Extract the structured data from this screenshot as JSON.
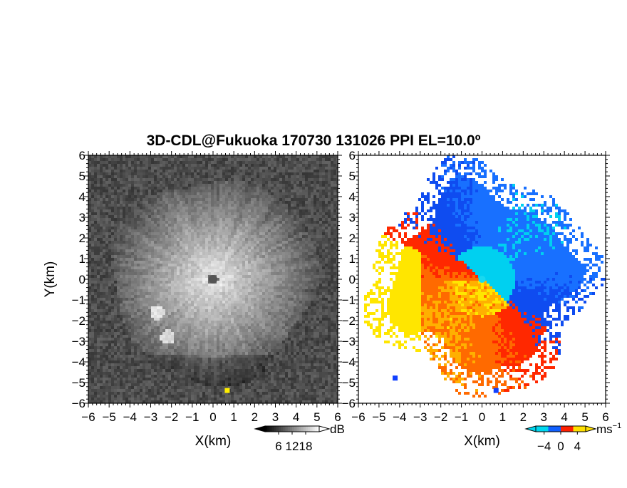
{
  "figure": {
    "title": "3D-CDL@Fukuoka 170730 131026 PPI EL=10.0º"
  },
  "chart_data": [
    {
      "type": "heatmap",
      "panel": "reflectivity",
      "xlabel": "X(km)",
      "ylabel": "Y(km)",
      "xlim": [
        -6,
        6
      ],
      "ylim": [
        -6,
        6
      ],
      "xticks": [
        "−6",
        "−5",
        "−4",
        "−3",
        "−2",
        "−1",
        "0",
        "1",
        "2",
        "3",
        "4",
        "5",
        "6"
      ],
      "yticks": [
        "6",
        "5",
        "4",
        "3",
        "2",
        "1",
        "0",
        "−1",
        "−2",
        "−3",
        "−4",
        "−5",
        "−6"
      ],
      "colorbar": {
        "unit": "dB",
        "ticks": [
          "6",
          "12",
          "18"
        ],
        "tick_values": [
          6,
          12,
          18
        ],
        "range": [
          0,
          24
        ],
        "colormap": "grayscale",
        "colors": [
          "#000000",
          "#ffffff"
        ]
      },
      "features": [
        {
          "label": "high-echo disk",
          "center": [
            0,
            0
          ],
          "radius_km": 4.0
        },
        {
          "label": "outer echo ring",
          "center": [
            0,
            0
          ],
          "radius_km": 5.0
        },
        {
          "label": "clutter patch",
          "center": [
            -2.7,
            -1.6
          ]
        },
        {
          "label": "clutter patch",
          "center": [
            -2.2,
            -2.8
          ]
        },
        {
          "label": "hard target",
          "center": [
            0.7,
            -5.4
          ],
          "color": "#ffee00"
        }
      ]
    },
    {
      "type": "heatmap",
      "panel": "doppler-velocity",
      "xlabel": "X(km)",
      "ylabel": "",
      "xlim": [
        -6,
        6
      ],
      "ylim": [
        -6,
        6
      ],
      "xticks": [
        "−6",
        "−5",
        "−4",
        "−3",
        "−2",
        "−1",
        "0",
        "1",
        "2",
        "3",
        "4",
        "5",
        "6"
      ],
      "yticks": [
        "6",
        "5",
        "4",
        "3",
        "2",
        "1",
        "0",
        "−1",
        "−2",
        "−3",
        "−4",
        "−5",
        "−6"
      ],
      "colorbar": {
        "unit": "ms",
        "unit_exponent": "−1",
        "ticks": [
          "−4",
          "0",
          "4"
        ],
        "tick_values": [
          -4,
          0,
          4
        ],
        "range": [
          -6,
          6
        ],
        "colormap": "diverging",
        "colors": [
          "#00d8f0",
          "#1060ff",
          "#ff2000",
          "#ffe000"
        ]
      },
      "features": [
        {
          "label": "approaching flow (blue)",
          "sector": "north-east"
        },
        {
          "label": "receding flow (red/orange)",
          "sector": "south-west"
        },
        {
          "label": "hard target",
          "center": [
            0.7,
            -5.4
          ],
          "color": "#1040ff"
        },
        {
          "label": "isolated echo",
          "center": [
            -4.2,
            -4.8
          ],
          "color": "#1040ff"
        }
      ]
    }
  ]
}
